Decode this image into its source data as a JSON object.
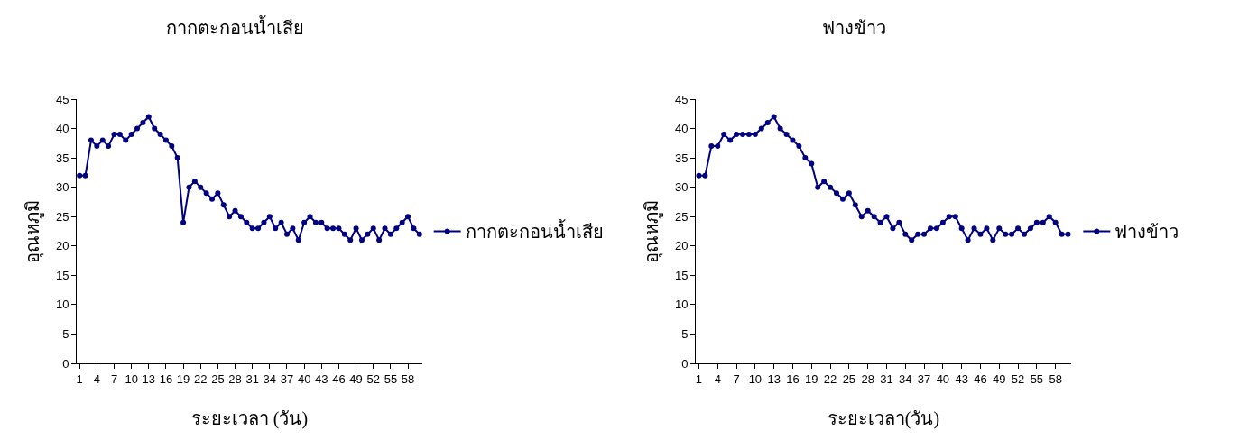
{
  "chart_data": [
    {
      "type": "line",
      "title": "กากตะกอนน้ำเสีย",
      "xlabel": "ระยะเวลา (วัน)",
      "ylabel": "อุณหภูมิ",
      "categories": [
        "1",
        null,
        null,
        "4",
        null,
        null,
        "7",
        null,
        null,
        "10",
        null,
        null,
        "13",
        null,
        null,
        "16",
        null,
        null,
        "19",
        null,
        null,
        "22",
        null,
        null,
        "25",
        null,
        null,
        "28",
        null,
        null,
        "31",
        null,
        null,
        "34",
        null,
        null,
        "37",
        null,
        null,
        "40",
        null,
        null,
        "43",
        null,
        null,
        "46",
        null,
        null,
        "49",
        null,
        null,
        "52",
        null,
        null,
        "55",
        null,
        null,
        "58",
        null,
        null
      ],
      "ylim": [
        0,
        45
      ],
      "yticks": [
        0,
        5,
        10,
        15,
        20,
        25,
        30,
        35,
        40,
        45
      ],
      "grid": false,
      "legend": "right",
      "marker": "circle",
      "line_style": "solid",
      "series": [
        {
          "name": "กากตะกอนน้ำเสีย",
          "color": "#000080",
          "values": [
            32,
            32,
            38,
            37,
            38,
            37,
            39,
            39,
            38,
            39,
            40,
            41,
            42,
            40,
            39,
            38,
            37,
            35,
            24,
            30,
            31,
            30,
            29,
            28,
            29,
            27,
            25,
            26,
            25,
            24,
            23,
            23,
            24,
            25,
            23,
            24,
            22,
            23,
            21,
            24,
            25,
            24,
            24,
            23,
            23,
            23,
            22,
            21,
            23,
            21,
            22,
            23,
            21,
            23,
            22,
            23,
            24,
            25,
            23,
            22
          ]
        }
      ]
    },
    {
      "type": "line",
      "title": "ฟางข้าว",
      "xlabel": "ระยะเวลา(วัน)",
      "ylabel": "อุณหภูมิ",
      "categories": [
        "1",
        null,
        null,
        "4",
        null,
        null,
        "7",
        null,
        null,
        "10",
        null,
        null,
        "13",
        null,
        null,
        "16",
        null,
        null,
        "19",
        null,
        null,
        "22",
        null,
        null,
        "25",
        null,
        null,
        "28",
        null,
        null,
        "31",
        null,
        null,
        "34",
        null,
        null,
        "37",
        null,
        null,
        "40",
        null,
        null,
        "43",
        null,
        null,
        "46",
        null,
        null,
        "49",
        null,
        null,
        "52",
        null,
        null,
        "55",
        null,
        null,
        "58",
        null,
        null
      ],
      "ylim": [
        0,
        45
      ],
      "yticks": [
        0,
        5,
        10,
        15,
        20,
        25,
        30,
        35,
        40,
        45
      ],
      "grid": false,
      "legend": "right",
      "marker": "circle",
      "line_style": "solid",
      "series": [
        {
          "name": "ฟางข้าว",
          "color": "#000080",
          "values": [
            32,
            32,
            37,
            37,
            39,
            38,
            39,
            39,
            39,
            39,
            40,
            41,
            42,
            40,
            39,
            38,
            37,
            35,
            34,
            30,
            31,
            30,
            29,
            28,
            29,
            27,
            25,
            26,
            25,
            24,
            25,
            23,
            24,
            22,
            21,
            22,
            22,
            23,
            23,
            24,
            25,
            25,
            23,
            21,
            23,
            22,
            23,
            21,
            23,
            22,
            22,
            23,
            22,
            23,
            24,
            24,
            25,
            24,
            22,
            22
          ]
        }
      ]
    }
  ]
}
